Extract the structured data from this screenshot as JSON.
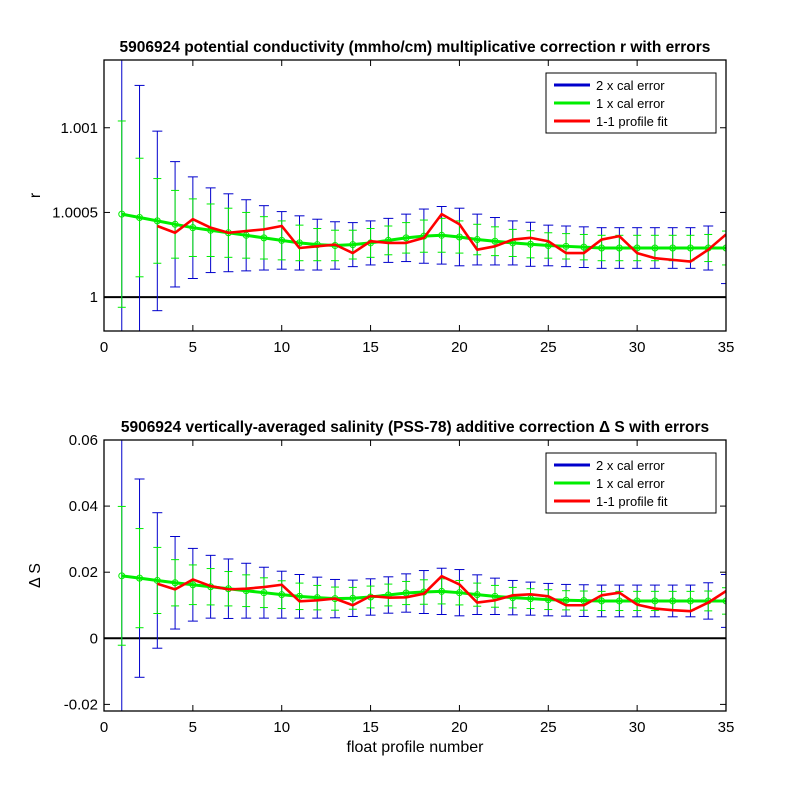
{
  "chart_data": [
    {
      "type": "line",
      "title": "5906924 potential conductivity (mmho/cm) multiplicative correction r with errors",
      "xlabel": "",
      "ylabel": "r",
      "xlim": [
        0,
        35
      ],
      "ylim": [
        0.9998,
        1.0014
      ],
      "xticks": [
        0,
        5,
        10,
        15,
        20,
        25,
        30,
        35
      ],
      "xtick_labels": [
        "0",
        "5",
        "10",
        "15",
        "20",
        "25",
        "30",
        "35"
      ],
      "yticks": [
        1.0,
        1.0005,
        1.001
      ],
      "ytick_labels": [
        "1",
        "1.0005",
        "1.001"
      ],
      "reference_line": 1.0,
      "legend": [
        "2 x cal error",
        "1 x cal error",
        "1-1 profile fit"
      ],
      "legend_position": "top-right",
      "grid": false,
      "x": [
        1,
        2,
        3,
        4,
        5,
        6,
        7,
        8,
        9,
        10,
        11,
        12,
        13,
        14,
        15,
        16,
        17,
        18,
        19,
        20,
        21,
        22,
        23,
        24,
        25,
        26,
        27,
        28,
        29,
        30,
        31,
        32,
        33,
        34,
        35
      ],
      "series": [
        {
          "name": "1 x cal error",
          "color": "#00ee00",
          "values": [
            1.00049,
            1.00047,
            1.00045,
            1.00043,
            1.00041,
            1.000395,
            1.00038,
            1.000365,
            1.00035,
            1.000335,
            1.00032,
            1.00031,
            1.000305,
            1.00031,
            1.00032,
            1.000335,
            1.00035,
            1.00036,
            1.000365,
            1.000355,
            1.00034,
            1.00033,
            1.00032,
            1.000312,
            1.000305,
            1.0003,
            1.000295,
            1.00029,
            1.00029,
            1.00029,
            1.00029,
            1.00029,
            1.00029,
            1.00029,
            1.00029
          ],
          "error_1x": [
            0.00055,
            0.00035,
            0.00025,
            0.0002,
            0.00017,
            0.000155,
            0.000145,
            0.000135,
            0.000125,
            0.000115,
            0.000105,
            9.5e-05,
            9e-05,
            8.5e-05,
            8.5e-05,
            8.5e-05,
            9e-05,
            9.5e-05,
            0.0001,
            9.5e-05,
            9e-05,
            8.5e-05,
            8e-05,
            8e-05,
            7.5e-05,
            7.5e-05,
            7.5e-05,
            7.5e-05,
            7.5e-05,
            7.5e-05,
            7.5e-05,
            7.5e-05,
            7.5e-05,
            8e-05,
            0.0001
          ],
          "error_2x": [
            0.0011,
            0.00078,
            0.00053,
            0.00037,
            0.0003,
            0.00025,
            0.00023,
            0.00021,
            0.00019,
            0.00017,
            0.00016,
            0.00015,
            0.00014,
            0.00013,
            0.00013,
            0.00013,
            0.00014,
            0.00016,
            0.00017,
            0.00017,
            0.00015,
            0.00014,
            0.00013,
            0.00013,
            0.00012,
            0.00012,
            0.00012,
            0.00012,
            0.00012,
            0.00012,
            0.00012,
            0.00012,
            0.00012,
            0.00013,
            0.00021
          ]
        },
        {
          "name": "1-1 profile fit",
          "color": "#ff0000",
          "x": [
            3,
            4,
            5,
            6,
            7,
            8,
            9,
            10,
            11,
            12,
            13,
            14,
            15,
            16,
            17,
            18,
            19,
            20,
            21,
            22,
            23,
            24,
            25,
            26,
            27,
            28,
            29,
            30,
            31,
            32,
            33,
            34,
            35
          ],
          "values": [
            1.00042,
            1.00038,
            1.00046,
            1.00041,
            1.00038,
            1.00039,
            1.0004,
            1.00042,
            1.00029,
            1.0003,
            1.00031,
            1.00026,
            1.00033,
            1.00032,
            1.00032,
            1.00035,
            1.00049,
            1.00043,
            1.00028,
            1.0003,
            1.00034,
            1.00035,
            1.00033,
            1.00026,
            1.00026,
            1.00034,
            1.00036,
            1.00026,
            1.00023,
            1.00022,
            1.00021,
            1.00028,
            1.00037
          ]
        }
      ]
    },
    {
      "type": "line",
      "title": "5906924 vertically-averaged salinity (PSS-78) additive correction Δ S with errors",
      "xlabel": "float profile number",
      "ylabel": "Δ S",
      "xlim": [
        0,
        35
      ],
      "ylim": [
        -0.022,
        0.06
      ],
      "xticks": [
        0,
        5,
        10,
        15,
        20,
        25,
        30,
        35
      ],
      "xtick_labels": [
        "0",
        "5",
        "10",
        "15",
        "20",
        "25",
        "30",
        "35"
      ],
      "yticks": [
        -0.02,
        0,
        0.02,
        0.04,
        0.06
      ],
      "ytick_labels": [
        "-0.02",
        "0",
        "0.02",
        "0.04",
        "0.06"
      ],
      "reference_line": 0,
      "legend": [
        "2 x cal error",
        "1 x cal error",
        "1-1 profile fit"
      ],
      "legend_position": "top-right",
      "grid": false,
      "x": [
        1,
        2,
        3,
        4,
        5,
        6,
        7,
        8,
        9,
        10,
        11,
        12,
        13,
        14,
        15,
        16,
        17,
        18,
        19,
        20,
        21,
        22,
        23,
        24,
        25,
        26,
        27,
        28,
        29,
        30,
        31,
        32,
        33,
        34,
        35
      ],
      "series": [
        {
          "name": "1 x cal error",
          "color": "#00ee00",
          "values": [
            0.0189,
            0.0182,
            0.0175,
            0.0168,
            0.0162,
            0.0156,
            0.015,
            0.0144,
            0.0138,
            0.0132,
            0.0127,
            0.0123,
            0.012,
            0.0121,
            0.0125,
            0.0131,
            0.0137,
            0.014,
            0.0142,
            0.0138,
            0.0132,
            0.0127,
            0.0123,
            0.012,
            0.0117,
            0.0115,
            0.0114,
            0.0113,
            0.0113,
            0.0113,
            0.0113,
            0.0113,
            0.0113,
            0.0113,
            0.0113
          ],
          "error_1x": [
            0.021,
            0.015,
            0.01,
            0.007,
            0.006,
            0.0055,
            0.0052,
            0.0048,
            0.0045,
            0.0042,
            0.004,
            0.0037,
            0.0035,
            0.0033,
            0.0033,
            0.0033,
            0.0035,
            0.0037,
            0.0038,
            0.0037,
            0.0035,
            0.0033,
            0.0031,
            0.003,
            0.003,
            0.0029,
            0.0029,
            0.0029,
            0.0029,
            0.0029,
            0.0029,
            0.0029,
            0.0029,
            0.003,
            0.004
          ],
          "error_2x": [
            0.042,
            0.03,
            0.0205,
            0.014,
            0.011,
            0.0095,
            0.009,
            0.0083,
            0.0077,
            0.0071,
            0.0066,
            0.0062,
            0.0058,
            0.0055,
            0.0055,
            0.0055,
            0.0058,
            0.0065,
            0.007,
            0.007,
            0.006,
            0.0055,
            0.0052,
            0.005,
            0.0049,
            0.0048,
            0.0048,
            0.0048,
            0.0048,
            0.0048,
            0.0048,
            0.0048,
            0.0048,
            0.0055,
            0.008
          ]
        },
        {
          "name": "1-1 profile fit",
          "color": "#ff0000",
          "x": [
            3,
            4,
            5,
            6,
            7,
            8,
            9,
            10,
            11,
            12,
            13,
            14,
            15,
            16,
            17,
            18,
            19,
            20,
            21,
            22,
            23,
            24,
            25,
            26,
            27,
            28,
            29,
            30,
            31,
            32,
            33,
            34,
            35
          ],
          "values": [
            0.0165,
            0.0148,
            0.0178,
            0.0158,
            0.0148,
            0.015,
            0.0155,
            0.0162,
            0.0112,
            0.0115,
            0.012,
            0.01,
            0.0128,
            0.0123,
            0.0124,
            0.0135,
            0.0188,
            0.0163,
            0.0108,
            0.0115,
            0.013,
            0.0133,
            0.0127,
            0.01,
            0.01,
            0.013,
            0.0138,
            0.0102,
            0.009,
            0.0085,
            0.0082,
            0.0108,
            0.0143
          ]
        }
      ]
    }
  ]
}
